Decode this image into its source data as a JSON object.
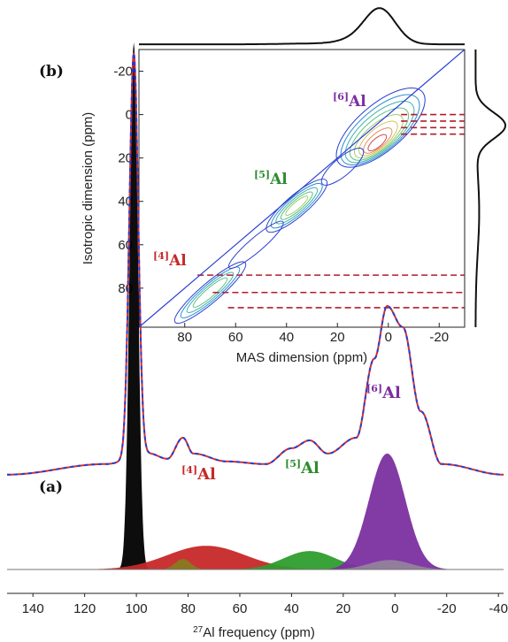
{
  "chart_data": [
    {
      "panel": "a",
      "panel_label": "(a)",
      "type": "area",
      "xlabel_sup": "27",
      "xlabel_main": "Al frequency (ppm)",
      "xlim": [
        150,
        -42
      ],
      "reversed": true,
      "xticks": [
        140,
        120,
        100,
        80,
        60,
        40,
        20,
        0,
        -20,
        -40
      ],
      "colors": {
        "exp": "#d32f2f",
        "fit": "#1f3fd9",
        "t": "#000000",
        "al4": "#c62828",
        "al5": "#2e9d2e",
        "al6": "#7b2fa0",
        "minor": "#9a9a9a",
        "sm": "#8a7a20"
      },
      "labels": [
        {
          "pre": "[4]",
          "main": "Al",
          "color": "#c62828"
        },
        {
          "pre": "[5]",
          "main": "Al",
          "color": "#2e8b2e"
        },
        {
          "pre": "[6]",
          "main": "Al",
          "color": "#7b2fa0"
        }
      ],
      "peaks": [
        {
          "pos": 101,
          "width": 1.6,
          "amp": 1.0
        },
        {
          "pos": 73,
          "width": 15,
          "amp": 0.045
        },
        {
          "pos": 82,
          "width": 3,
          "amp": 0.02
        },
        {
          "pos": 33,
          "width": 10,
          "amp": 0.035
        },
        {
          "pos": 3,
          "width": 7,
          "amp": 0.22
        },
        {
          "pos": 2,
          "width": 8,
          "amp": 0.018
        }
      ],
      "experimental_envelope": [
        {
          "pos": 150,
          "h": 0.18
        },
        {
          "pos": 110,
          "h": 0.21
        },
        {
          "pos": 101,
          "h": 1.0
        },
        {
          "pos": 92,
          "h": 0.24
        },
        {
          "pos": 82,
          "h": 0.26
        },
        {
          "pos": 70,
          "h": 0.22
        },
        {
          "pos": 50,
          "h": 0.21
        },
        {
          "pos": 35,
          "h": 0.25
        },
        {
          "pos": 20,
          "h": 0.2
        },
        {
          "pos": 3,
          "h": 0.5
        },
        {
          "pos": -20,
          "h": 0.19
        },
        {
          "pos": -42,
          "h": 0.18
        }
      ]
    },
    {
      "panel": "b",
      "panel_label": "(b)",
      "type": "heatmap",
      "xlabel": "MAS dimension (ppm)",
      "ylabel": "Isotropic dimension (ppm)",
      "xlim": [
        98,
        -30
      ],
      "ylim": [
        -30,
        98
      ],
      "xticks": [
        80,
        60,
        40,
        20,
        0,
        -20
      ],
      "yticks": [
        -20,
        0,
        20,
        40,
        60,
        80
      ],
      "labels": [
        {
          "pre": "[6]",
          "main": "Al",
          "color": "#7b2fa0"
        },
        {
          "pre": "[5]",
          "main": "Al",
          "color": "#2e8b2e"
        },
        {
          "pre": "[4]",
          "main": "Al",
          "color": "#c62828"
        }
      ],
      "contour_centers": [
        {
          "x": 3,
          "y": 8,
          "level": "high"
        },
        {
          "x": 35,
          "y": 40,
          "level": "medium"
        },
        {
          "x": 68,
          "y": 82,
          "level": "low"
        }
      ],
      "slice_lines_iso": [
        74,
        82,
        89,
        0,
        3,
        6,
        9
      ],
      "top_projection_envelope": [
        {
          "mas": 98,
          "h": 0.05
        },
        {
          "mas": 30,
          "h": 0.07
        },
        {
          "mas": 10,
          "h": 0.22
        },
        {
          "mas": 3,
          "h": 1.0
        },
        {
          "mas": -10,
          "h": 0.3
        },
        {
          "mas": -30,
          "h": 0.08
        }
      ],
      "right_projection_envelope": [
        {
          "iso": -30,
          "h": 0.05
        },
        {
          "iso": 0,
          "h": 0.6
        },
        {
          "iso": 5,
          "h": 1.0
        },
        {
          "iso": 15,
          "h": 0.3
        },
        {
          "iso": 50,
          "h": 0.12
        },
        {
          "iso": 98,
          "h": 0.05
        }
      ]
    }
  ]
}
